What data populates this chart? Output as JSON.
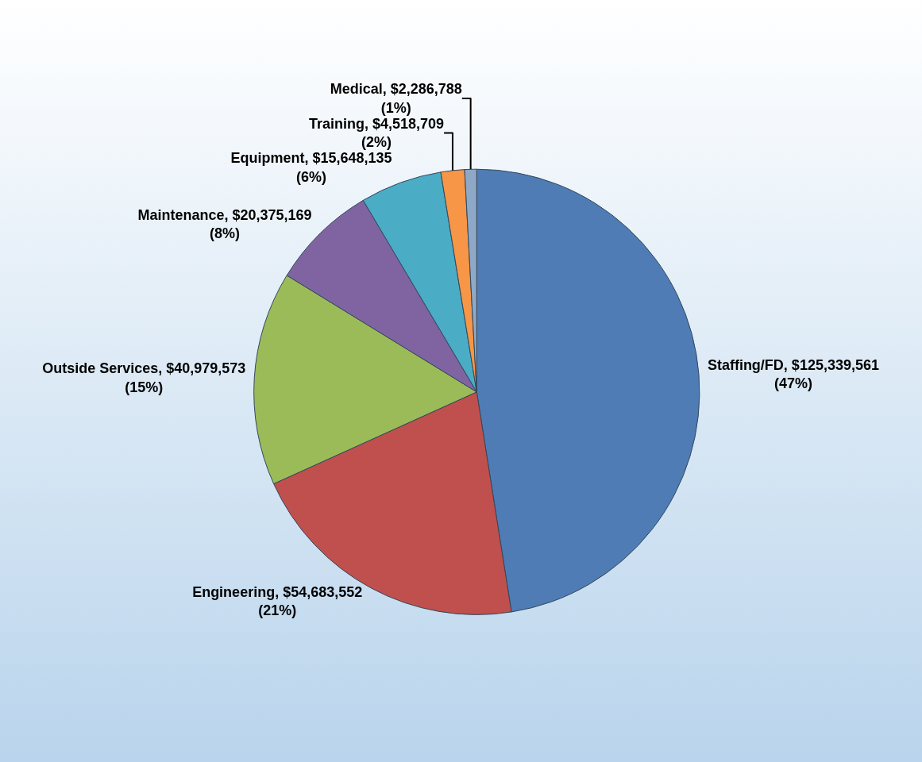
{
  "chart_data": {
    "type": "pie",
    "categories": [
      "Staffing/FD",
      "Engineering",
      "Outside Services",
      "Maintenance",
      "Equipment",
      "Training",
      "Medical"
    ],
    "values": [
      125339561,
      54683552,
      40979573,
      20375169,
      15648135,
      4518709,
      2286788
    ],
    "value_labels": [
      "$125,339,561 (47%)",
      "$54,683,552 (21%)",
      "$40,979,573 (15%)",
      "$20,375,169 (8%)",
      "$15,648,135 (6%)",
      "$4,518,709 (2%)",
      "$2,286,788 (1%)"
    ],
    "colors": [
      "#4f7cb5",
      "#c0504d",
      "#9bbb59",
      "#8064a2",
      "#4bacc6",
      "#f79646",
      "#8ea9c8"
    ],
    "legend": false
  }
}
